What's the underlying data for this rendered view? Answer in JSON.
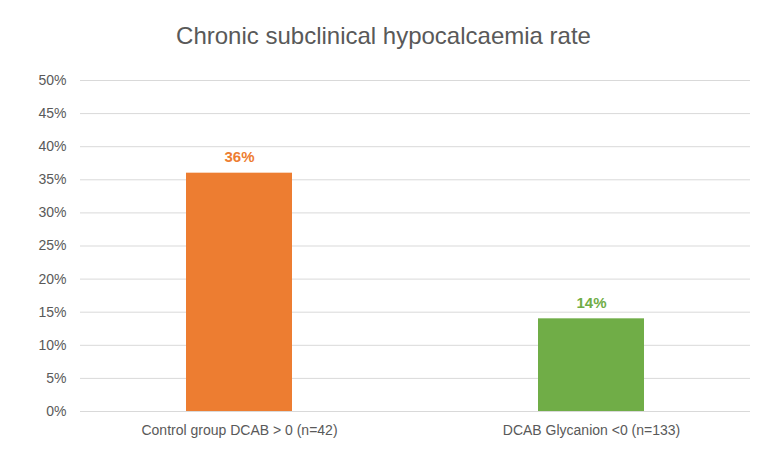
{
  "chart_data": {
    "type": "bar",
    "title": "Chronic subclinical hypocalcaemia rate",
    "categories": [
      "Control group DCAB > 0 (n=42)",
      "DCAB Glycanion <0 (n=133)"
    ],
    "values": [
      36,
      14
    ],
    "value_labels": [
      "36%",
      "14%"
    ],
    "colors": [
      "#ED7D31",
      "#70AD47"
    ],
    "ylim": [
      0,
      50
    ],
    "yticks": [
      {
        "value": 0,
        "label": "0%"
      },
      {
        "value": 5,
        "label": "5%"
      },
      {
        "value": 10,
        "label": "10%"
      },
      {
        "value": 15,
        "label": "15%"
      },
      {
        "value": 20,
        "label": "20%"
      },
      {
        "value": 25,
        "label": "25%"
      },
      {
        "value": 30,
        "label": "30%"
      },
      {
        "value": 35,
        "label": "35%"
      },
      {
        "value": 40,
        "label": "40%"
      },
      {
        "value": 45,
        "label": "45%"
      },
      {
        "value": 50,
        "label": "50%"
      }
    ],
    "grid": true,
    "data_labels": true
  }
}
